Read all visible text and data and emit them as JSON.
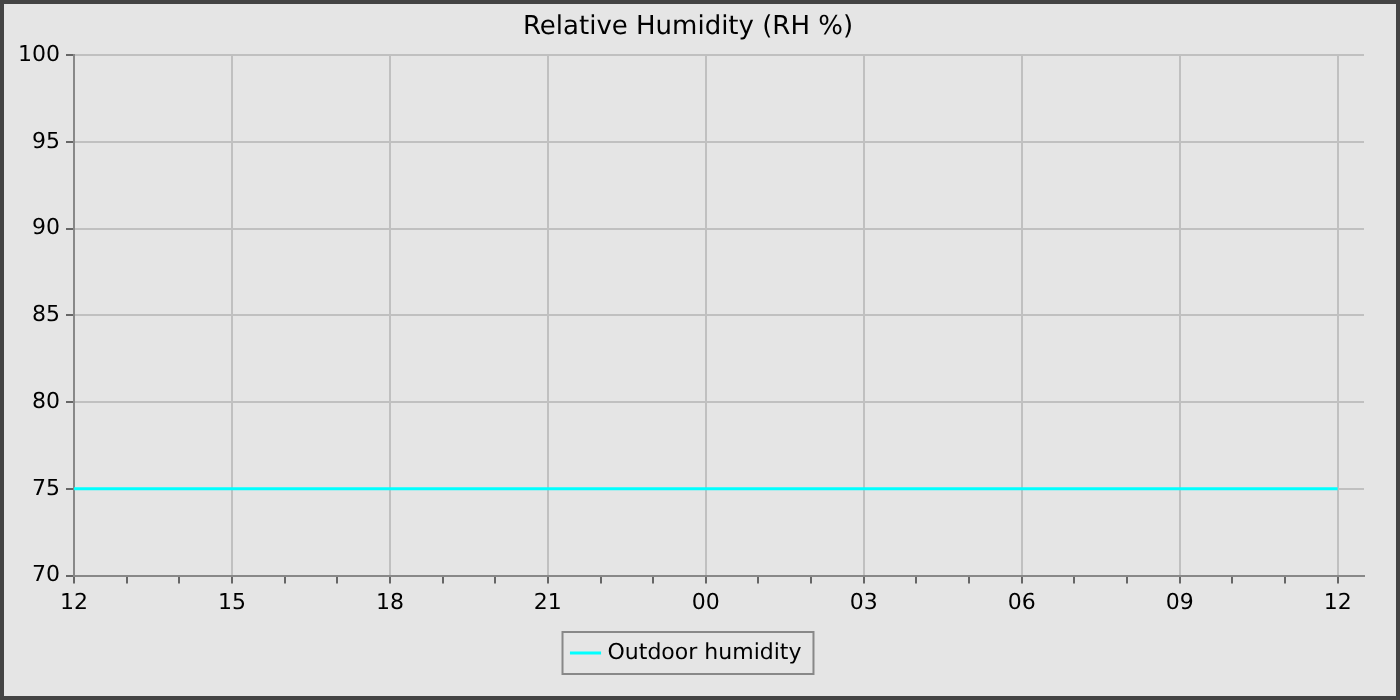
{
  "chart_data": {
    "type": "line",
    "title": "Relative Humidity (RH %)",
    "x": [
      12,
      36
    ],
    "series": [
      {
        "name": "Outdoor humidity",
        "color": "#00ffff",
        "values": [
          75,
          75
        ]
      }
    ],
    "xlim": [
      12,
      36.5
    ],
    "xticks": [
      {
        "value": 12,
        "label": "12"
      },
      {
        "value": 13,
        "label": null
      },
      {
        "value": 14,
        "label": null
      },
      {
        "value": 15,
        "label": "15"
      },
      {
        "value": 16,
        "label": null
      },
      {
        "value": 17,
        "label": null
      },
      {
        "value": 18,
        "label": "18"
      },
      {
        "value": 19,
        "label": null
      },
      {
        "value": 20,
        "label": null
      },
      {
        "value": 21,
        "label": "21"
      },
      {
        "value": 22,
        "label": null
      },
      {
        "value": 23,
        "label": null
      },
      {
        "value": 24,
        "label": "00"
      },
      {
        "value": 25,
        "label": null
      },
      {
        "value": 26,
        "label": null
      },
      {
        "value": 27,
        "label": "03"
      },
      {
        "value": 28,
        "label": null
      },
      {
        "value": 29,
        "label": null
      },
      {
        "value": 30,
        "label": "06"
      },
      {
        "value": 31,
        "label": null
      },
      {
        "value": 32,
        "label": null
      },
      {
        "value": 33,
        "label": "09"
      },
      {
        "value": 34,
        "label": null
      },
      {
        "value": 35,
        "label": null
      },
      {
        "value": 36,
        "label": "12"
      }
    ],
    "ylim": [
      70,
      100
    ],
    "yticks": [
      70,
      75,
      80,
      85,
      90,
      95,
      100
    ],
    "grid": true,
    "legend": "bottom",
    "marker": "none",
    "line_style": "solid"
  }
}
